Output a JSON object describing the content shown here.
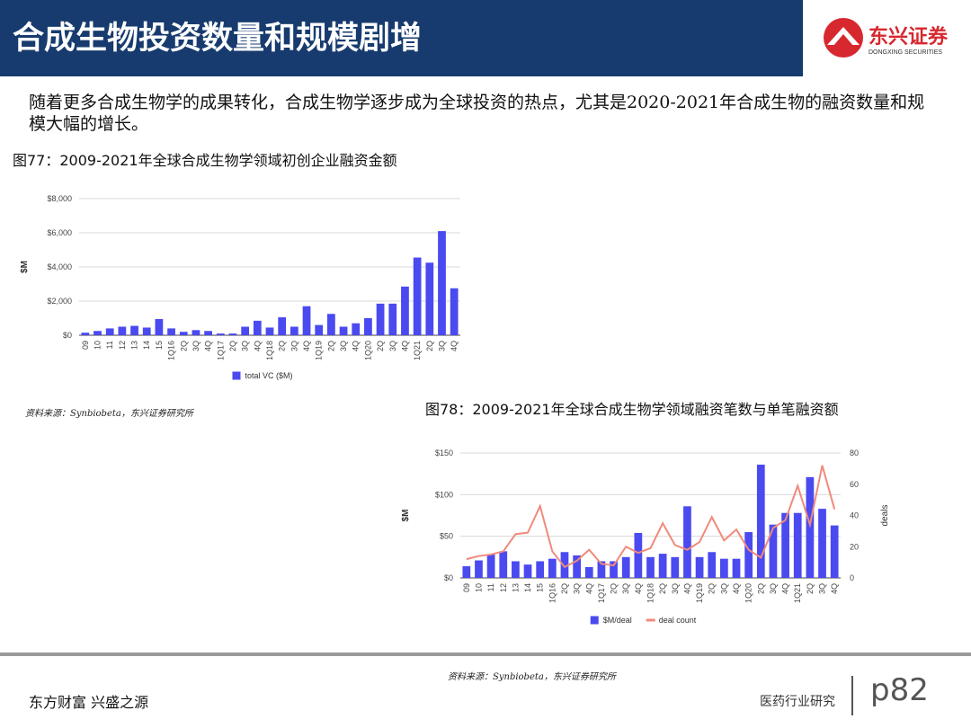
{
  "header": {
    "title": "合成生物投资数量和规模剧增",
    "logo_name": "东兴证券",
    "logo_en": "DONGXING SECURITIES"
  },
  "body": "随着更多合成生物学的成果转化，合成生物学逐步成为全球投资的热点，尤其是2020-2021年合成生物的融资数量和规模大幅的增长。",
  "chart_data": [
    {
      "type": "bar",
      "title": "图77：2009-2021年全球合成生物学领域初创企业融资金额",
      "y_label": "$M",
      "source": "资料来源：Synbiobeta，东兴证券研究所",
      "categories": [
        "09",
        "10",
        "11",
        "12",
        "13",
        "14",
        "15",
        "1Q16",
        "2Q",
        "3Q",
        "4Q",
        "1Q17",
        "2Q",
        "3Q",
        "4Q",
        "1Q18",
        "2Q",
        "3Q",
        "4Q",
        "1Q19",
        "2Q",
        "3Q",
        "4Q",
        "1Q20",
        "2Q",
        "3Q",
        "4Q",
        "1Q21",
        "2Q",
        "3Q",
        "4Q"
      ],
      "series": [
        {
          "name": "total VC ($M)",
          "color": "#4a4af0",
          "values": [
            150,
            250,
            400,
            500,
            550,
            450,
            950,
            400,
            200,
            300,
            250,
            100,
            100,
            500,
            850,
            450,
            1050,
            500,
            1700,
            600,
            1250,
            500,
            700,
            1000,
            1850,
            1850,
            2850,
            4550,
            4250,
            6100,
            2750
          ]
        }
      ],
      "ylim": [
        0,
        8000
      ],
      "yticks": [
        {
          "value": 0,
          "label": "$0"
        },
        {
          "value": 2000,
          "label": "$2,000"
        },
        {
          "value": 4000,
          "label": "$4,000"
        },
        {
          "value": 6000,
          "label": "$6,000"
        },
        {
          "value": 8000,
          "label": "$8,000"
        }
      ],
      "grid": true,
      "legend": "bottom"
    },
    {
      "type": "bar",
      "title": "图78：2009-2021年全球合成生物学领域融资笔数与单笔融资额",
      "y_label": "$M",
      "y2_label": "deals",
      "source": "资料来源：Synbiobeta，东兴证券研究所",
      "categories": [
        "09",
        "10",
        "11",
        "12",
        "13",
        "14",
        "15",
        "1Q16",
        "2Q",
        "3Q",
        "4Q",
        "1Q17",
        "2Q",
        "3Q",
        "4Q",
        "1Q18",
        "2Q",
        "3Q",
        "4Q",
        "1Q19",
        "2Q",
        "3Q",
        "4Q",
        "1Q20",
        "2Q",
        "3Q",
        "4Q",
        "1Q21",
        "2Q",
        "3Q",
        "4Q"
      ],
      "series": [
        {
          "name": "$M/deal",
          "type": "bar",
          "color": "#4a4af0",
          "values": [
            14,
            21,
            28,
            32,
            20,
            16,
            20,
            23,
            31,
            27,
            13,
            20,
            20,
            25,
            54,
            25,
            29,
            25,
            86,
            25,
            31,
            23,
            23,
            55,
            136,
            64,
            78,
            78,
            121,
            83,
            63
          ]
        },
        {
          "name": "deal count",
          "type": "line",
          "axis": "y2",
          "color": "#f08a7c",
          "values": [
            12,
            14,
            15,
            17,
            28,
            29,
            46,
            17,
            7,
            11,
            18,
            9,
            8,
            20,
            16,
            19,
            35,
            21,
            18,
            23,
            39,
            24,
            31,
            18,
            13,
            32,
            37,
            59,
            34,
            72,
            44
          ]
        }
      ],
      "ylim": [
        0,
        150
      ],
      "yticks": [
        {
          "value": 0,
          "label": "$0"
        },
        {
          "value": 50,
          "label": "$50"
        },
        {
          "value": 100,
          "label": "$100"
        },
        {
          "value": 150,
          "label": "$150"
        }
      ],
      "y2lim": [
        0,
        80
      ],
      "y2ticks": [
        0,
        20,
        40,
        60,
        80
      ],
      "grid": true,
      "legend": "bottom"
    }
  ],
  "footer": {
    "slogan": "东方财富 兴盛之源",
    "section": "医药行业研究",
    "page": "p82"
  }
}
